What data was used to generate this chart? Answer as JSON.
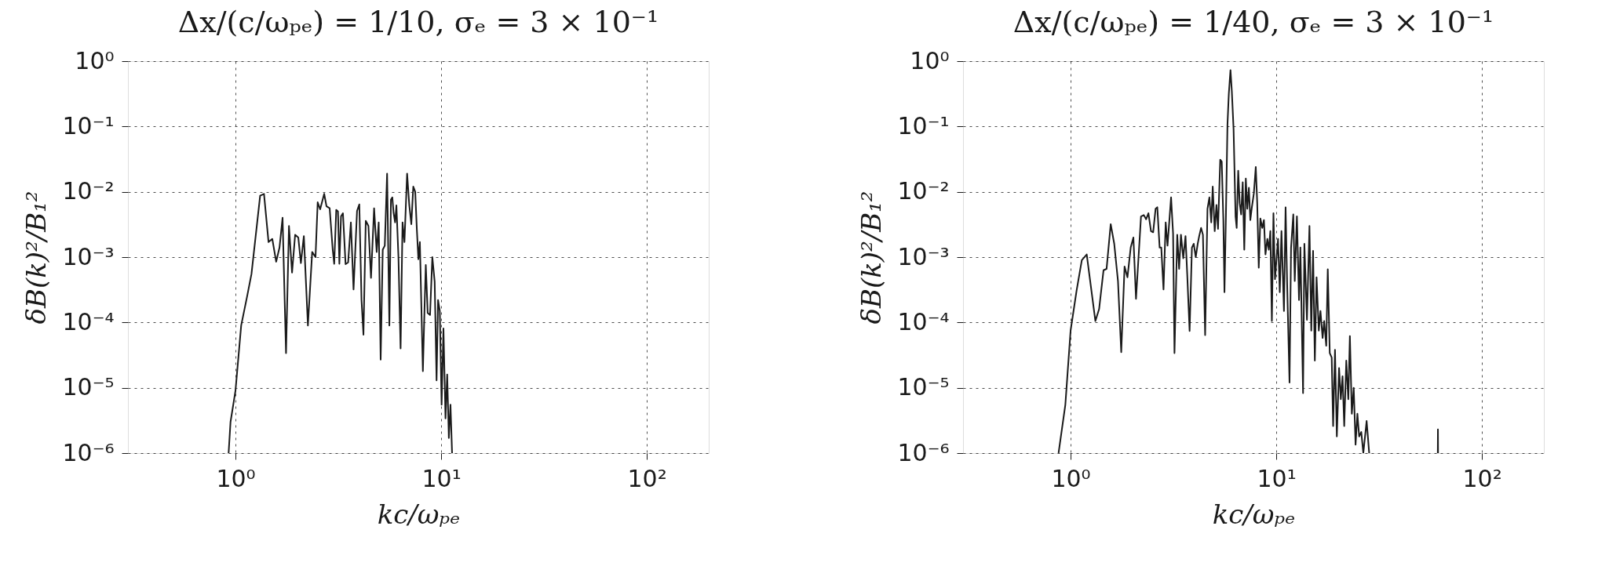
{
  "chart_data": [
    {
      "type": "line",
      "title": "Δx/(c/ωₚₑ) = 1/10, σₑ = 3 × 10⁻¹",
      "xlabel": "kc/ωₚₑ",
      "ylabel": "δB(k)²/B₁²",
      "log": "xy",
      "grid": true,
      "marker": "none",
      "line_style": "solid",
      "xlim": [
        0.3,
        200
      ],
      "xticks": [
        {
          "value": 1,
          "label": "10⁰"
        },
        {
          "value": 10,
          "label": "10¹"
        },
        {
          "value": 100,
          "label": "10²"
        }
      ],
      "ylim": [
        1e-06,
        1
      ],
      "yticks": [
        {
          "value": 1e-06,
          "label": "10⁻⁶"
        },
        {
          "value": 1e-05,
          "label": "10⁻⁵"
        },
        {
          "value": 0.0001,
          "label": "10⁻⁴"
        },
        {
          "value": 0.001,
          "label": "10⁻³"
        },
        {
          "value": 0.01,
          "label": "10⁻²"
        },
        {
          "value": 0.1,
          "label": "10⁻¹"
        },
        {
          "value": 1,
          "label": "10⁰"
        }
      ],
      "series": [
        {
          "color": "#1a1a1a",
          "x": [
            0.926,
            0.946,
            1.0,
            1.066,
            1.136,
            1.196,
            1.318,
            1.376,
            1.448,
            1.51,
            1.577,
            1.637,
            1.694,
            1.761,
            1.82,
            1.884,
            1.95,
            2.02,
            2.08,
            2.15,
            2.25,
            2.36,
            2.45,
            2.51,
            2.58,
            2.7,
            2.77,
            2.87,
            2.97,
            3.02,
            3.09,
            3.15,
            3.2,
            3.26,
            3.33,
            3.43,
            3.53,
            3.64,
            3.75,
            3.9,
            4.0,
            4.1,
            4.19,
            4.3,
            4.43,
            4.56,
            4.72,
            4.86,
            4.97,
            5.08,
            5.2,
            5.32,
            5.46,
            5.6,
            5.7,
            5.79,
            5.87,
            5.97,
            6.06,
            6.2,
            6.35,
            6.49,
            6.63,
            6.83,
            7.0,
            7.16,
            7.32,
            7.48,
            7.62,
            7.75,
            7.88,
            8.0,
            8.15,
            8.3,
            8.42,
            8.6,
            8.83,
            9.06,
            9.3,
            9.5,
            9.66,
            9.85,
            10.05,
            10.26,
            10.5,
            10.7,
            10.9,
            11.1,
            11.3
          ],
          "values": [
            1e-06,
            3e-06,
            9e-06,
            9e-05,
            0.00024,
            0.00055,
            0.0087,
            0.0093,
            0.0017,
            0.0019,
            0.00085,
            0.0014,
            0.004,
            3.4e-05,
            0.003,
            0.00058,
            0.0022,
            0.002,
            0.00081,
            0.0021,
            9e-05,
            0.0012,
            0.001,
            0.0069,
            0.0054,
            0.0093,
            0.006,
            0.0056,
            0.0013,
            0.00079,
            0.0053,
            0.005,
            0.00079,
            0.0042,
            0.0047,
            0.00078,
            0.00083,
            0.0034,
            0.00032,
            0.0051,
            0.0064,
            0.00022,
            6.5e-05,
            0.0036,
            0.003,
            0.00048,
            0.0056,
            0.0012,
            0.0034,
            2.7e-05,
            0.0013,
            0.0015,
            0.019,
            9e-05,
            0.0076,
            0.0082,
            0.0048,
            0.0034,
            0.0062,
            0.001,
            4e-05,
            0.0034,
            0.0017,
            0.019,
            0.0062,
            0.0032,
            0.012,
            0.01,
            0.0026,
            0.00093,
            0.0017,
            0.00022,
            1.8e-05,
            0.00016,
            0.00076,
            0.00014,
            0.00013,
            0.001,
            0.00042,
            1.3e-05,
            0.00022,
            0.00015,
            5.5e-06,
            8.1e-05,
            3.4e-06,
            1.6e-05,
            1.7e-06,
            5.5e-06,
            1e-06
          ]
        }
      ]
    },
    {
      "type": "line",
      "title": "Δx/(c/ωₚₑ) = 1/40, σₑ = 3 × 10⁻¹",
      "xlabel": "kc/ωₚₑ",
      "ylabel": "δB(k)²/B₁²",
      "log": "xy",
      "grid": true,
      "marker": "none",
      "line_style": "solid",
      "xlim": [
        0.3,
        200
      ],
      "xticks": [
        {
          "value": 1,
          "label": "10⁰"
        },
        {
          "value": 10,
          "label": "10¹"
        },
        {
          "value": 100,
          "label": "10²"
        }
      ],
      "ylim": [
        1e-06,
        1
      ],
      "yticks": [
        {
          "value": 1e-06,
          "label": "10⁻⁶"
        },
        {
          "value": 1e-05,
          "label": "10⁻⁵"
        },
        {
          "value": 0.0001,
          "label": "10⁻⁴"
        },
        {
          "value": 0.001,
          "label": "10⁻³"
        },
        {
          "value": 0.01,
          "label": "10⁻²"
        },
        {
          "value": 0.1,
          "label": "10⁻¹"
        },
        {
          "value": 1,
          "label": "10⁰"
        }
      ],
      "series": [
        {
          "color": "#1a1a1a",
          "x": [
            0.874,
            0.943,
            1.0,
            1.07,
            1.134,
            1.198,
            1.32,
            1.376,
            1.446,
            1.496,
            1.567,
            1.63,
            1.7,
            1.763,
            1.83,
            1.89,
            1.96,
            2.02,
            2.08,
            2.2,
            2.27,
            2.33,
            2.39,
            2.46,
            2.52,
            2.59,
            2.64,
            2.71,
            2.76,
            2.83,
            2.9,
            2.96,
            3.08,
            3.15,
            3.2,
            3.3,
            3.37,
            3.44,
            3.53,
            3.62,
            3.69,
            3.79,
            3.89,
            3.97,
            4.06,
            4.15,
            4.22,
            4.31,
            4.4,
            4.51,
            4.63,
            4.73,
            4.83,
            4.91,
            5.02,
            5.12,
            5.21,
            5.34,
            5.43,
            5.53,
            5.6,
            5.69,
            5.79,
            5.88,
            5.99,
            6.08,
            6.2,
            6.34,
            6.42,
            6.53,
            6.64,
            6.75,
            6.87,
            6.99,
            7.11,
            7.23,
            7.36,
            7.48,
            7.61,
            7.78,
            7.95,
            8.08,
            8.22,
            8.37,
            8.55,
            8.71,
            8.86,
            9.05,
            9.2,
            9.36,
            9.52,
            9.69,
            9.86,
            10.0,
            10.2,
            10.4,
            10.6,
            10.9,
            11.1,
            11.3,
            11.6,
            11.8,
            12.1,
            12.3,
            12.6,
            12.9,
            13.1,
            13.5,
            13.7,
            14.1,
            14.5,
            14.8,
            15.1,
            15.4,
            15.7,
            16.1,
            16.4,
            16.8,
            17.1,
            17.5,
            17.8,
            18.2,
            18.6,
            18.9,
            19.3,
            19.7,
            20.2,
            20.6,
            21.0,
            21.4,
            21.9,
            22.4,
            22.8,
            23.3,
            23.8,
            24.3,
            24.8,
            25.3,
            25.9,
            26.5,
            27.5,
            28.3,
            45.0,
            61.0,
            61.1,
            61.2
          ],
          "values": [
            1e-06,
            5.5e-06,
            7.5e-05,
            0.00031,
            0.0009,
            0.0011,
            0.000105,
            0.00016,
            0.00063,
            0.00066,
            0.0032,
            0.0016,
            0.00043,
            3.5e-05,
            0.00072,
            0.00049,
            0.0014,
            0.002,
            0.00023,
            0.0042,
            0.0044,
            0.0038,
            0.0047,
            0.0025,
            0.0024,
            0.0055,
            0.0058,
            0.0014,
            0.0014,
            0.00032,
            0.0034,
            0.0015,
            0.0082,
            0.0023,
            3.4e-05,
            0.0022,
            0.00066,
            0.0022,
            0.00096,
            0.0021,
            0.00055,
            7.4e-05,
            0.0014,
            0.0016,
            0.001,
            0.0016,
            0.0021,
            0.0028,
            0.0022,
            6.4e-05,
            0.0055,
            0.0082,
            0.0034,
            0.012,
            0.0025,
            0.0063,
            0.0027,
            0.031,
            0.029,
            0.0037,
            0.00029,
            0.0042,
            0.105,
            0.32,
            0.73,
            0.35,
            0.092,
            0.0042,
            0.0028,
            0.021,
            0.0067,
            0.0045,
            0.014,
            0.0013,
            0.016,
            0.0055,
            0.0115,
            0.0037,
            0.0058,
            0.0094,
            0.024,
            0.0067,
            0.00069,
            0.0039,
            0.0028,
            0.0037,
            0.0011,
            0.0019,
            0.0013,
            0.0025,
            0.000105,
            0.0047,
            0.00046,
            0.00084,
            0.0019,
            0.00029,
            0.0025,
            0.00015,
            0.0058,
            0.00037,
            1.2e-05,
            0.0014,
            0.0045,
            0.00043,
            0.0042,
            0.00022,
            0.0014,
            8.3e-06,
            0.0016,
            0.00011,
            0.003,
            7.5e-05,
            0.00125,
            2.6e-05,
            0.00049,
            7.5e-05,
            0.00015,
            5.8e-05,
            0.000105,
            4.4e-05,
            0.00065,
            3.4e-05,
            2.9e-05,
            2.6e-06,
            3.8e-05,
            1.8e-06,
            2e-05,
            6.7e-06,
            1.5e-05,
            2.6e-06,
            2.6e-05,
            6.7e-06,
            6.2e-05,
            4e-06,
            1e-05,
            1.35e-06,
            4e-06,
            1.8e-06,
            2.1e-06,
            1e-06,
            3.1e-06,
            1e-06,
            null,
            1e-06,
            2.3e-06,
            1e-06
          ]
        }
      ]
    }
  ]
}
